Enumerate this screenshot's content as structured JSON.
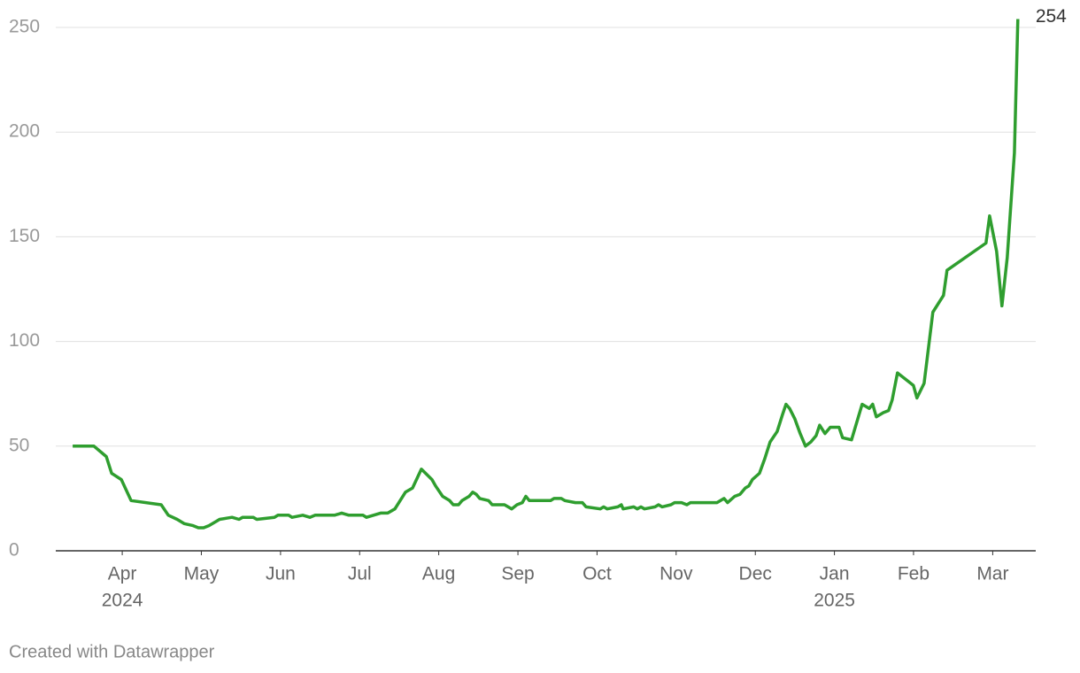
{
  "chart_data": {
    "type": "line",
    "x": [
      2024.1978,
      2024.2202,
      2024.2332,
      2024.2388,
      2024.2491,
      2024.2593,
      2024.291,
      2024.2985,
      2024.3078,
      2024.3152,
      2024.3246,
      2024.3302,
      2024.3357,
      2024.3413,
      2024.3488,
      2024.3525,
      2024.3656,
      2024.373,
      2024.3768,
      2024.3879,
      2024.3917,
      2024.4103,
      2024.414,
      2024.4252,
      2024.4289,
      2024.4401,
      2024.4476,
      2024.4532,
      2024.4737,
      2024.4811,
      2024.4886,
      2024.5035,
      2024.5072,
      2024.5147,
      2024.5221,
      2024.5296,
      2024.5371,
      2024.5482,
      2024.5557,
      2024.565,
      2024.5762,
      2024.5799,
      2024.5874,
      2024.5948,
      2024.5986,
      2024.6042,
      2024.6079,
      2024.6153,
      2024.6191,
      2024.6228,
      2024.6265,
      2024.6358,
      2024.6396,
      2024.6526,
      2024.6601,
      2024.6657,
      2024.6713,
      2024.675,
      2024.6787,
      2024.7011,
      2024.7048,
      2024.7123,
      2024.716,
      2024.7272,
      2024.7346,
      2024.7384,
      2024.7533,
      2024.757,
      2024.7607,
      2024.7719,
      2024.7756,
      2024.7775,
      2024.7887,
      2024.7924,
      2024.7962,
      2024.7999,
      2024.8111,
      2024.8148,
      2024.8185,
      2024.8278,
      2024.8316,
      2024.839,
      2024.8446,
      2024.8483,
      2024.8763,
      2024.8838,
      2024.8875,
      2024.8949,
      2024.9005,
      2024.9061,
      2024.9099,
      2024.9136,
      2024.921,
      2024.9266,
      2024.9322,
      2024.9397,
      2024.9453,
      2024.949,
      2024.9527,
      2024.9583,
      2024.9639,
      2024.9695,
      2024.9751,
      2024.9807,
      2024.9844,
      2024.99,
      2024.9956,
      2025.0049,
      2025.0086,
      2025.018,
      2025.0292,
      2025.0366,
      2025.0403,
      2025.0441,
      2025.0515,
      2025.0571,
      2025.0608,
      2025.0664,
      2025.0776,
      2025.0832,
      2025.0869,
      2025.0944,
      2025.1037,
      2025.1149,
      2025.1186,
      2025.1596,
      2025.1634,
      2025.1708,
      2025.1764,
      2025.182,
      2025.1895,
      2025.1932
    ],
    "series": [
      {
        "color": "#2f9e2f",
        "values": [
          50,
          50,
          45,
          37,
          34,
          24,
          22,
          17,
          15,
          13,
          12,
          11,
          11,
          12,
          14,
          15,
          16,
          15,
          16,
          16,
          15,
          16,
          17,
          17,
          16,
          17,
          16,
          17,
          17,
          18,
          17,
          17,
          16,
          17,
          18,
          18,
          20,
          28,
          30,
          39,
          34,
          31,
          26,
          24,
          22,
          22,
          24,
          26,
          28,
          27,
          25,
          24,
          22,
          22,
          20,
          22,
          23,
          26,
          24,
          24,
          25,
          25,
          24,
          23,
          23,
          21,
          20,
          21,
          20,
          21,
          22,
          20,
          21,
          20,
          21,
          20,
          21,
          22,
          21,
          22,
          23,
          23,
          22,
          23,
          23,
          25,
          23,
          26,
          27,
          30,
          31,
          34,
          37,
          44,
          52,
          57,
          65,
          70,
          68,
          63,
          56,
          50,
          52,
          55,
          60,
          56,
          59,
          59,
          54,
          53,
          70,
          68,
          70,
          64,
          66,
          67,
          72,
          85,
          81,
          79,
          73,
          80,
          114,
          122,
          134,
          147,
          160,
          143,
          117,
          140,
          190,
          254
        ]
      }
    ],
    "xlim": [
      2024.18,
      2025.212
    ],
    "xticks": [
      {
        "value": 2024.25,
        "label": "Apr"
      },
      {
        "value": 2024.3333,
        "label": "May"
      },
      {
        "value": 2024.4167,
        "label": "Jun"
      },
      {
        "value": 2024.5,
        "label": "Jul"
      },
      {
        "value": 2024.5833,
        "label": "Aug"
      },
      {
        "value": 2024.6667,
        "label": "Sep"
      },
      {
        "value": 2024.75,
        "label": "Oct"
      },
      {
        "value": 2024.8333,
        "label": "Nov"
      },
      {
        "value": 2024.9167,
        "label": "Dec"
      },
      {
        "value": 2025.0,
        "label": "Jan"
      },
      {
        "value": 2025.0833,
        "label": "Feb"
      },
      {
        "value": 2025.1667,
        "label": "Mar"
      }
    ],
    "xtick_years": [
      {
        "value": 2024.25,
        "label": "2024"
      },
      {
        "value": 2025.0,
        "label": "2025"
      }
    ],
    "ylim": [
      0,
      250
    ],
    "yticks": [
      0,
      50,
      100,
      150,
      200,
      250
    ],
    "grid": true,
    "credit": "Created with Datawrapper"
  }
}
